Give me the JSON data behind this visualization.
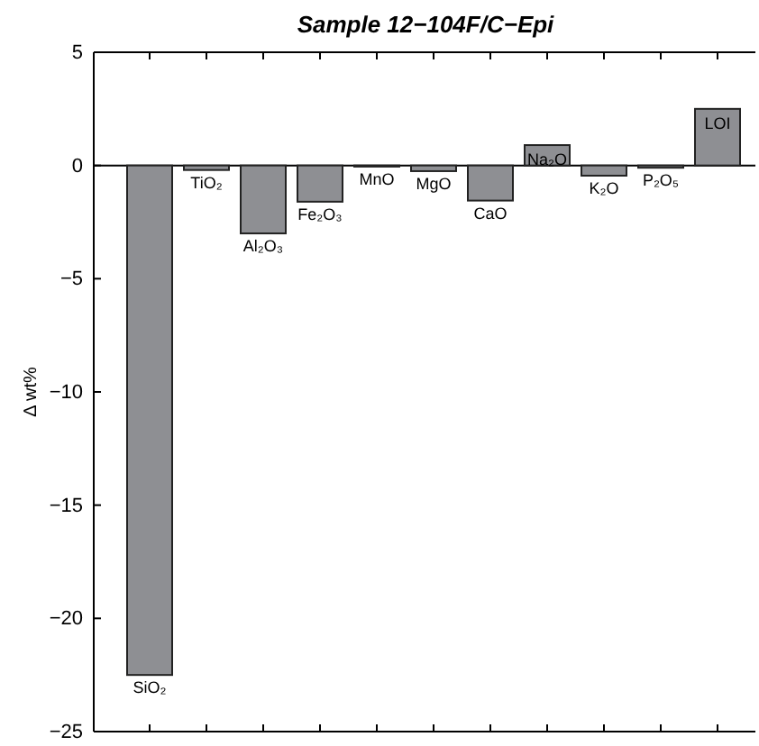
{
  "chart_data": {
    "type": "bar",
    "title": "Sample 12−104F/C−Epi",
    "ylabel": "Δ wt%",
    "categories": [
      "SiO₂",
      "TiO₂",
      "Al₂O₃",
      "Fe₂O₃",
      "MnO",
      "MgO",
      "CaO",
      "Na₂O",
      "K₂O",
      "P₂O₅",
      "LOI"
    ],
    "values": [
      -22.5,
      -0.2,
      -3.0,
      -1.6,
      -0.05,
      -0.25,
      -1.55,
      0.9,
      -0.45,
      -0.1,
      2.5
    ],
    "color": "#8e8f93",
    "ylim": [
      -25,
      5
    ],
    "yticks": [
      -25,
      -20,
      -15,
      -10,
      -5,
      0,
      5
    ],
    "grid": false
  }
}
